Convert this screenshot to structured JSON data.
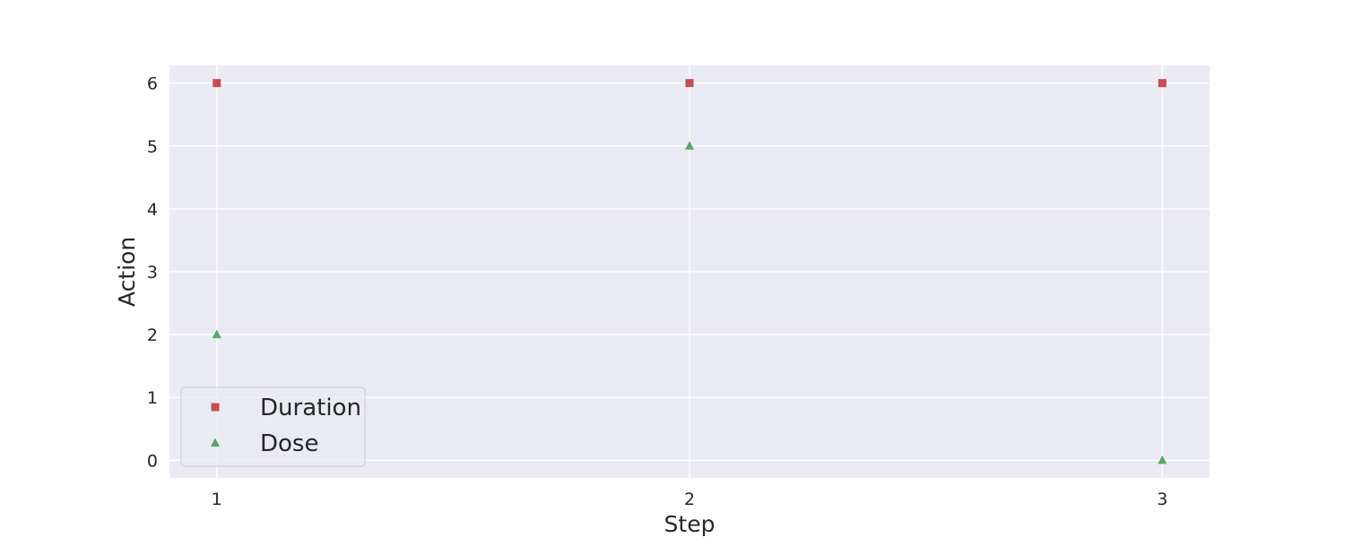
{
  "chart_data": {
    "type": "scatter",
    "xlabel": "Step",
    "ylabel": "Action",
    "x": [
      1,
      2,
      3
    ],
    "xticks": [
      "1",
      "2",
      "3"
    ],
    "yticks": [
      "0",
      "1",
      "2",
      "3",
      "4",
      "5",
      "6"
    ],
    "xlim": [
      0.9,
      3.1
    ],
    "ylim": [
      -0.28,
      6.28
    ],
    "grid": true,
    "legend_position": "lower-left",
    "series": [
      {
        "name": "Duration",
        "marker": "square",
        "color": "#c44e52",
        "values": [
          6,
          6,
          6
        ]
      },
      {
        "name": "Dose",
        "marker": "triangle",
        "color": "#55a868",
        "values": [
          2,
          5,
          0
        ]
      }
    ],
    "colors": {
      "plot_background": "#eaeaf2",
      "grid": "#ffffff",
      "text": "#262626"
    }
  }
}
